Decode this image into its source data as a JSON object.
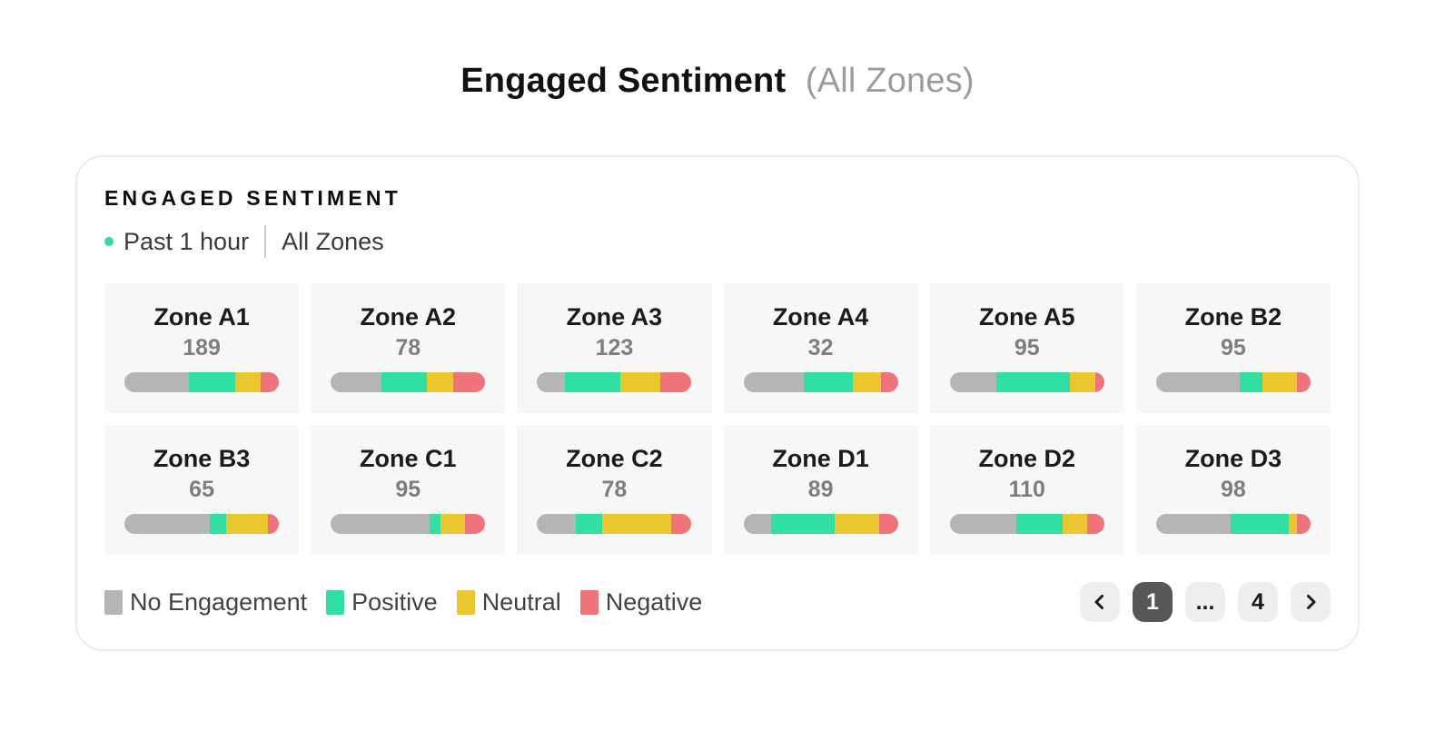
{
  "page_title": {
    "main": "Engaged Sentiment",
    "suffix": "(All Zones)"
  },
  "card": {
    "heading": "ENGAGED SENTIMENT",
    "subtitle": {
      "period": "Past 1 hour",
      "scope": "All Zones"
    },
    "zones": [
      {
        "name": "Zone A1",
        "engaged": "189",
        "segments": {
          "no_engagement": 42,
          "positive": 30,
          "neutral": 16,
          "negative": 12
        }
      },
      {
        "name": "Zone A2",
        "engaged": "78",
        "segments": {
          "no_engagement": 33,
          "positive": 29,
          "neutral": 17,
          "negative": 21
        }
      },
      {
        "name": "Zone A3",
        "engaged": "123",
        "segments": {
          "no_engagement": 18,
          "positive": 36,
          "neutral": 26,
          "negative": 20
        }
      },
      {
        "name": "Zone A4",
        "engaged": "32",
        "segments": {
          "no_engagement": 39,
          "positive": 32,
          "neutral": 18,
          "negative": 11
        }
      },
      {
        "name": "Zone A5",
        "engaged": "95",
        "segments": {
          "no_engagement": 30,
          "positive": 48,
          "neutral": 16,
          "negative": 6
        }
      },
      {
        "name": "Zone B2",
        "engaged": "95",
        "segments": {
          "no_engagement": 54,
          "positive": 15,
          "neutral": 22,
          "negative": 9
        }
      },
      {
        "name": "Zone B3",
        "engaged": "65",
        "segments": {
          "no_engagement": 55,
          "positive": 11,
          "neutral": 27,
          "negative": 7
        }
      },
      {
        "name": "Zone C1",
        "engaged": "95",
        "segments": {
          "no_engagement": 64,
          "positive": 7,
          "neutral": 16,
          "negative": 13
        }
      },
      {
        "name": "Zone C2",
        "engaged": "78",
        "segments": {
          "no_engagement": 25,
          "positive": 17,
          "neutral": 45,
          "negative": 13
        }
      },
      {
        "name": "Zone D1",
        "engaged": "89",
        "segments": {
          "no_engagement": 18,
          "positive": 41,
          "neutral": 29,
          "negative": 12
        }
      },
      {
        "name": "Zone D2",
        "engaged": "110",
        "segments": {
          "no_engagement": 43,
          "positive": 30,
          "neutral": 16,
          "negative": 11
        }
      },
      {
        "name": "Zone D3",
        "engaged": "98",
        "segments": {
          "no_engagement": 48,
          "positive": 38,
          "neutral": 5,
          "negative": 9
        }
      }
    ],
    "legend": [
      {
        "key": "no_engagement",
        "label": "No Engagement",
        "color": "#b5b5b5"
      },
      {
        "key": "positive",
        "label": "Positive",
        "color": "#32dfa2"
      },
      {
        "key": "neutral",
        "label": "Neutral",
        "color": "#eac72f"
      },
      {
        "key": "negative",
        "label": "Negative",
        "color": "#ef737a"
      }
    ],
    "pagination": {
      "pages": [
        {
          "label": "1",
          "active": true
        },
        {
          "label": "...",
          "active": false
        },
        {
          "label": "4",
          "active": false
        }
      ]
    }
  },
  "colors": {
    "status_dot": "#2fdca1",
    "tile_background": "#f7f7f7",
    "card_border": "#ececec",
    "active_page_background": "#575757",
    "page_button_background": "#eeeeee",
    "title_suffix_gray": "#9c9c9c"
  },
  "chart_data": {
    "type": "bar",
    "subtype": "horizontal-stacked-mini-bars",
    "title": "Engaged Sentiment",
    "categories": [
      "Zone A1",
      "Zone A2",
      "Zone A3",
      "Zone A4",
      "Zone A5",
      "Zone B2",
      "Zone B3",
      "Zone C1",
      "Zone C2",
      "Zone D1",
      "Zone D2",
      "Zone D3"
    ],
    "engaged_counts": [
      189,
      78,
      123,
      32,
      95,
      95,
      65,
      95,
      78,
      89,
      110,
      98
    ],
    "series": [
      {
        "name": "No Engagement",
        "color": "#b5b5b5",
        "values": [
          42,
          33,
          18,
          39,
          30,
          54,
          55,
          64,
          25,
          18,
          43,
          48
        ]
      },
      {
        "name": "Positive",
        "color": "#32dfa2",
        "values": [
          30,
          29,
          36,
          32,
          48,
          15,
          11,
          7,
          17,
          41,
          30,
          38
        ]
      },
      {
        "name": "Neutral",
        "color": "#eac72f",
        "values": [
          16,
          17,
          26,
          18,
          16,
          22,
          27,
          16,
          45,
          29,
          16,
          5
        ]
      },
      {
        "name": "Negative",
        "color": "#ef737a",
        "values": [
          12,
          21,
          20,
          11,
          6,
          9,
          7,
          13,
          13,
          12,
          11,
          9
        ]
      }
    ],
    "units": "percent of bar width",
    "legend_position": "bottom-left"
  }
}
